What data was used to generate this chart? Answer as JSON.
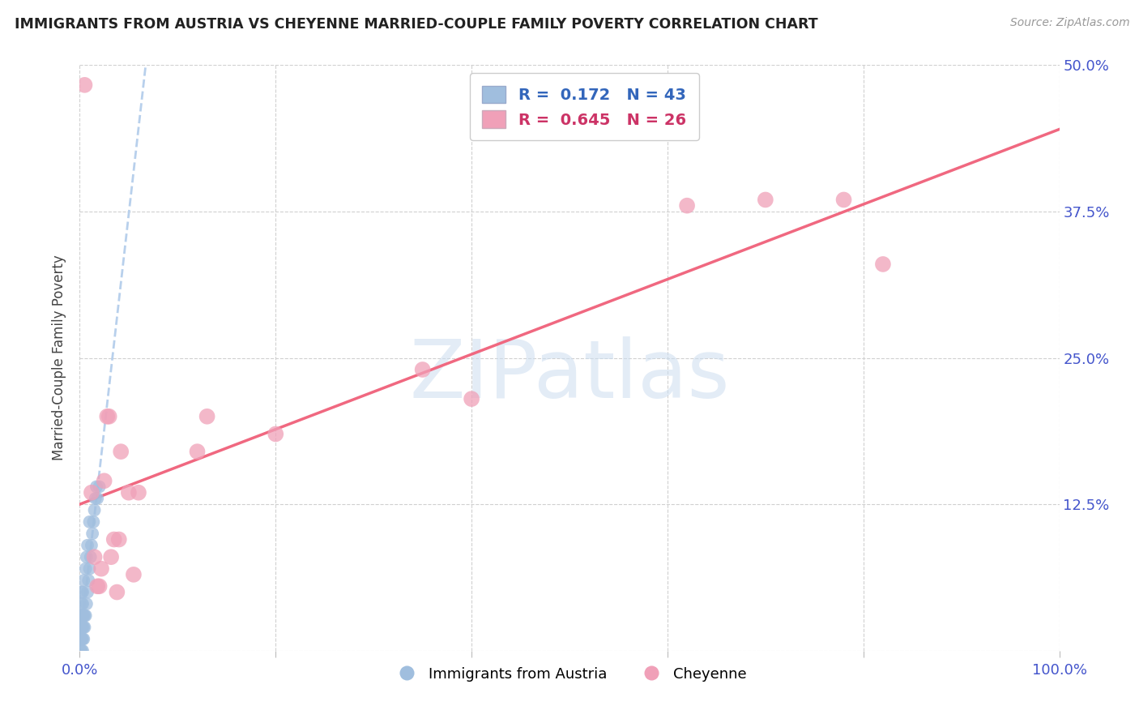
{
  "title": "IMMIGRANTS FROM AUSTRIA VS CHEYENNE MARRIED-COUPLE FAMILY POVERTY CORRELATION CHART",
  "source": "Source: ZipAtlas.com",
  "ylabel": "Married-Couple Family Poverty",
  "watermark": "ZIPatlas",
  "background_color": "#ffffff",
  "grid_color": "#d0d0d0",
  "austria_dot_color": "#a0bede",
  "cheyenne_dot_color": "#f0a0b8",
  "austria_line_color": "#b8d0ec",
  "cheyenne_line_color": "#f06880",
  "austria_legend_color": "#3366bb",
  "cheyenne_legend_color": "#cc3366",
  "tick_label_color": "#4455cc",
  "ylabel_color": "#444444",
  "R_austria_text": "R =  0.172",
  "N_austria_text": "N = 43",
  "R_cheyenne_text": "R =  0.645",
  "N_cheyenne_text": "N = 26",
  "series1_label": "Immigrants from Austria",
  "series2_label": "Cheyenne",
  "xlim": [
    0,
    1.0
  ],
  "ylim": [
    0,
    0.5
  ],
  "x_ticks": [
    0.0,
    0.2,
    0.4,
    0.6,
    0.8,
    1.0
  ],
  "y_ticks": [
    0.0,
    0.125,
    0.25,
    0.375,
    0.5
  ],
  "austria_x": [
    0.001,
    0.001,
    0.001,
    0.001,
    0.001,
    0.002,
    0.002,
    0.002,
    0.002,
    0.002,
    0.002,
    0.002,
    0.002,
    0.003,
    0.003,
    0.003,
    0.003,
    0.003,
    0.003,
    0.004,
    0.004,
    0.004,
    0.004,
    0.005,
    0.005,
    0.006,
    0.006,
    0.007,
    0.007,
    0.008,
    0.008,
    0.009,
    0.01,
    0.01,
    0.011,
    0.012,
    0.013,
    0.014,
    0.015,
    0.016,
    0.017,
    0.018,
    0.02
  ],
  "austria_y": [
    0.0,
    0.01,
    0.01,
    0.02,
    0.03,
    0.0,
    0.01,
    0.01,
    0.02,
    0.02,
    0.03,
    0.04,
    0.05,
    0.0,
    0.01,
    0.02,
    0.03,
    0.04,
    0.05,
    0.01,
    0.02,
    0.03,
    0.06,
    0.02,
    0.03,
    0.03,
    0.07,
    0.04,
    0.08,
    0.05,
    0.09,
    0.06,
    0.07,
    0.11,
    0.08,
    0.09,
    0.1,
    0.11,
    0.12,
    0.13,
    0.14,
    0.13,
    0.14
  ],
  "cheyenne_x": [
    0.005,
    0.012,
    0.015,
    0.018,
    0.02,
    0.022,
    0.025,
    0.028,
    0.03,
    0.032,
    0.035,
    0.038,
    0.04,
    0.042,
    0.05,
    0.055,
    0.06,
    0.12,
    0.13,
    0.2,
    0.35,
    0.4,
    0.62,
    0.7,
    0.78,
    0.82
  ],
  "cheyenne_y": [
    0.483,
    0.135,
    0.08,
    0.055,
    0.055,
    0.07,
    0.145,
    0.2,
    0.2,
    0.08,
    0.095,
    0.05,
    0.095,
    0.17,
    0.135,
    0.065,
    0.135,
    0.17,
    0.2,
    0.185,
    0.24,
    0.215,
    0.38,
    0.385,
    0.385,
    0.33
  ]
}
